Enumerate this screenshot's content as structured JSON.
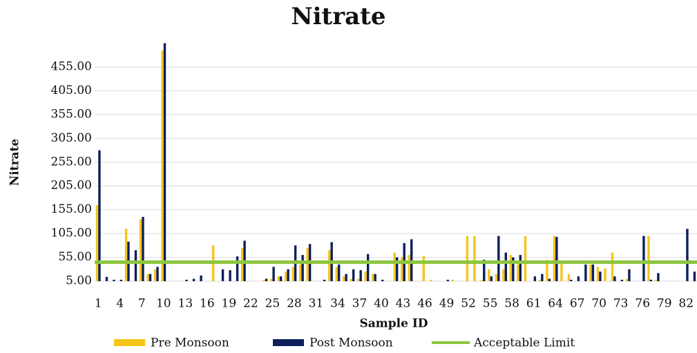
{
  "chart_data": {
    "type": "bar",
    "title": "Nitrate",
    "x_label": "Sample ID",
    "y_label": "Nitrate",
    "categories": [
      1,
      null,
      null,
      4,
      null,
      null,
      7,
      null,
      null,
      10,
      null,
      null,
      13,
      null,
      null,
      16,
      null,
      null,
      19,
      null,
      null,
      22,
      null,
      null,
      25,
      null,
      null,
      28,
      null,
      null,
      31,
      null,
      null,
      34,
      null,
      null,
      37,
      null,
      null,
      40,
      null,
      null,
      43,
      null,
      null,
      46,
      null,
      null,
      49,
      null,
      null,
      52,
      null,
      null,
      55,
      null,
      null,
      58,
      null,
      null,
      61,
      null,
      null,
      64,
      null,
      null,
      67,
      null,
      null,
      70,
      null,
      null,
      73,
      null,
      null,
      76,
      null,
      null,
      79,
      null,
      null,
      82,
      null
    ],
    "series": [
      {
        "name": "Pre Monsoon",
        "color": "#f5c518",
        "values": [
          165,
          0,
          0,
          0,
          115,
          0,
          135,
          20,
          30,
          490,
          0,
          0,
          0,
          0,
          0,
          0,
          80,
          0,
          0,
          0,
          75,
          5,
          5,
          8,
          10,
          15,
          25,
          35,
          40,
          75,
          0,
          0,
          70,
          35,
          15,
          10,
          10,
          25,
          20,
          5,
          5,
          65,
          55,
          60,
          0,
          58,
          8,
          0,
          5,
          8,
          0,
          100,
          100,
          8,
          30,
          20,
          30,
          60,
          40,
          100,
          0,
          8,
          50,
          100,
          48,
          20,
          0,
          0,
          40,
          35,
          32,
          65,
          5,
          10,
          0,
          0,
          100,
          8,
          0,
          0,
          0,
          0,
          5
        ]
      },
      {
        "name": "Post Monsoon",
        "color": "#0d1f5c",
        "values": [
          280,
          14,
          8,
          8,
          88,
          70,
          140,
          20,
          35,
          505,
          0,
          0,
          8,
          10,
          17,
          0,
          0,
          30,
          28,
          57,
          90,
          5,
          5,
          10,
          35,
          15,
          30,
          80,
          60,
          83,
          0,
          8,
          87,
          40,
          20,
          30,
          28,
          62,
          20,
          8,
          5,
          55,
          85,
          93,
          0,
          0,
          0,
          0,
          8,
          5,
          0,
          0,
          0,
          50,
          15,
          100,
          65,
          55,
          60,
          0,
          15,
          20,
          10,
          98,
          5,
          8,
          15,
          40,
          40,
          25,
          0,
          15,
          8,
          30,
          0,
          100,
          8,
          22,
          0,
          0,
          0,
          115,
          25
        ]
      }
    ],
    "limit": {
      "name": "Acceptable Limit",
      "value": 45,
      "color": "#8dc63f"
    },
    "ylim": [
      5,
      505
    ],
    "yticks": [
      {
        "value": 5,
        "label": "5.00"
      },
      {
        "value": 55,
        "label": "55.00"
      },
      {
        "value": 105,
        "label": "105.00"
      },
      {
        "value": 155,
        "label": "155.00"
      },
      {
        "value": 205,
        "label": "205.00"
      },
      {
        "value": 255,
        "label": "255.00"
      },
      {
        "value": 305,
        "label": "305.00"
      },
      {
        "value": 355,
        "label": "355.00"
      },
      {
        "value": 405,
        "label": "405.00"
      },
      {
        "value": 455,
        "label": "455.00"
      }
    ],
    "grid": true
  }
}
